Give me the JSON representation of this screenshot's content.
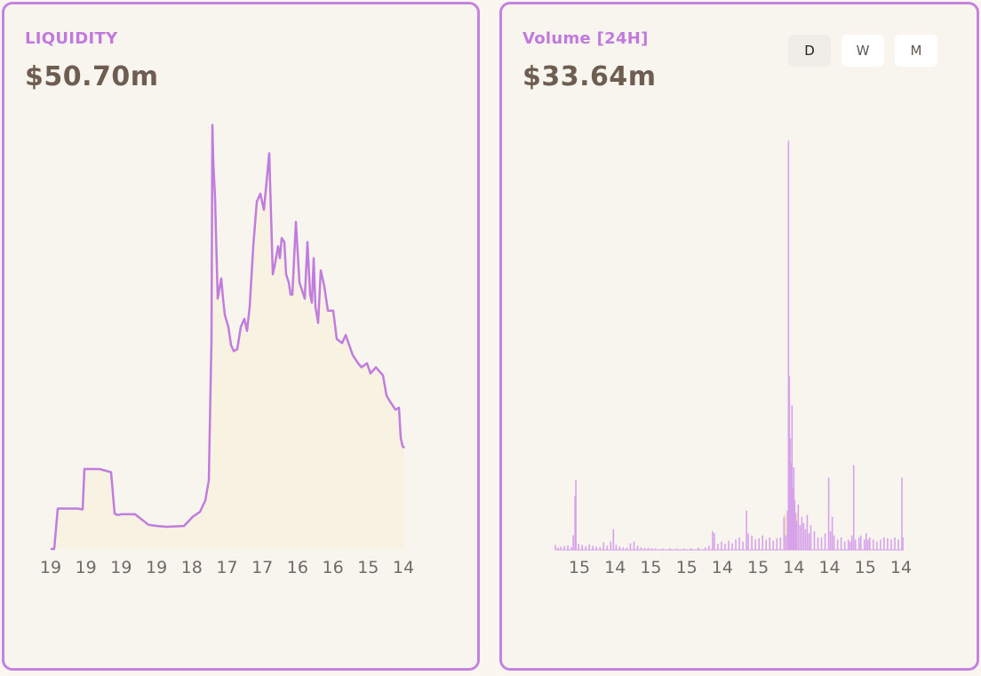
{
  "liquidity": {
    "label": "LIQUIDITY",
    "value": "$50.70m"
  },
  "volume": {
    "label": "Volume [24H]",
    "value": "$33.64m",
    "periods": [
      "D",
      "W",
      "M"
    ],
    "selected_period": "D"
  },
  "colors": {
    "line": "#c07ddd",
    "area_fill": "#f7f2e1",
    "bar": "#d6a2ea",
    "bar_highlight": "#f2d9a6",
    "border": "#c583e0",
    "value_text": "#6e5e52"
  },
  "chart_data": [
    {
      "type": "area",
      "xlabel": "",
      "ylabel": "",
      "grid": false,
      "tick_labels": [
        "19",
        "19",
        "19",
        "19",
        "18",
        "17",
        "17",
        "16",
        "16",
        "15",
        "14"
      ],
      "x": [
        0,
        4,
        8,
        30,
        36,
        38,
        42,
        55,
        68,
        72,
        75,
        80,
        95,
        110,
        120,
        130,
        150,
        160,
        168,
        174,
        178,
        181,
        182,
        183,
        185,
        188,
        192,
        194,
        196,
        200,
        203,
        206,
        210,
        214,
        218,
        221,
        224,
        228,
        232,
        236,
        240,
        246,
        250,
        252,
        256,
        258,
        260,
        263,
        265,
        268,
        270,
        272,
        276,
        280,
        286,
        289,
        292,
        294,
        296,
        298,
        301,
        304,
        308,
        312,
        318,
        322,
        328,
        332,
        340,
        346,
        350,
        356,
        360,
        366,
        370,
        374,
        378,
        382,
        388,
        392,
        394,
        396,
        398
      ],
      "y": [
        0,
        0,
        10.0,
        10.0,
        9.8,
        19.8,
        19.8,
        19.8,
        19.0,
        8.8,
        8.4,
        8.6,
        8.6,
        6.0,
        5.7,
        5.5,
        5.7,
        8.0,
        9.2,
        12.0,
        17.0,
        52.0,
        105.0,
        96.0,
        87.0,
        62.0,
        67.0,
        62.0,
        58.0,
        55.0,
        50.5,
        49.0,
        49.5,
        55.0,
        57.0,
        54.0,
        60.0,
        75.0,
        86.0,
        88.0,
        84.0,
        98.0,
        68.0,
        70.0,
        75.0,
        72.0,
        77.0,
        76.0,
        68.0,
        66.0,
        63.0,
        63.0,
        81.0,
        66.0,
        62.0,
        76.0,
        63.0,
        61.0,
        72.0,
        60.0,
        56.0,
        69.0,
        65.0,
        59.0,
        59.0,
        52.0,
        51.0,
        53.0,
        48.0,
        46.0,
        45.0,
        46.0,
        43.5,
        45.0,
        44.0,
        43.0,
        38.0,
        36.5,
        34.5,
        35.0,
        27.5,
        25.5,
        25.0
      ],
      "ylim": [
        0,
        110
      ]
    },
    {
      "type": "bar",
      "xlabel": "",
      "ylabel": "",
      "grid": false,
      "tick_labels": [
        "15",
        "14",
        "15",
        "15",
        "14",
        "15",
        "14",
        "14",
        "15",
        "14"
      ],
      "ylim": [
        0,
        100
      ],
      "bars": [
        [
          0,
          1.2
        ],
        [
          3,
          0.6
        ],
        [
          6,
          0.8
        ],
        [
          10,
          0.9
        ],
        [
          14,
          1.1
        ],
        [
          18,
          0.7
        ],
        [
          20,
          3.5
        ],
        [
          22,
          13.0
        ],
        [
          23,
          17.0
        ],
        [
          26,
          1.5
        ],
        [
          30,
          1.2
        ],
        [
          34,
          0.9
        ],
        [
          38,
          1.3
        ],
        [
          42,
          1.0
        ],
        [
          46,
          0.8
        ],
        [
          50,
          0.7
        ],
        [
          54,
          1.8
        ],
        [
          58,
          1.0
        ],
        [
          62,
          2.0
        ],
        [
          65,
          5.0
        ],
        [
          68,
          1.2
        ],
        [
          72,
          0.8
        ],
        [
          76,
          0.6
        ],
        [
          80,
          0.5
        ],
        [
          84,
          1.6
        ],
        [
          88,
          2.0
        ],
        [
          92,
          1.0
        ],
        [
          96,
          0.6
        ],
        [
          100,
          0.4
        ],
        [
          104,
          0.5
        ],
        [
          108,
          0.4
        ],
        [
          112,
          0.3
        ],
        [
          120,
          0.3
        ],
        [
          128,
          0.4
        ],
        [
          136,
          0.3
        ],
        [
          144,
          0.3
        ],
        [
          152,
          0.4
        ],
        [
          160,
          0.5
        ],
        [
          168,
          0.6
        ],
        [
          172,
          1.0
        ],
        [
          176,
          4.5
        ],
        [
          178,
          4.0
        ],
        [
          182,
          1.5
        ],
        [
          186,
          2.0
        ],
        [
          190,
          1.5
        ],
        [
          194,
          2.2
        ],
        [
          198,
          1.6
        ],
        [
          202,
          2.5
        ],
        [
          206,
          3.0
        ],
        [
          210,
          2.0
        ],
        [
          214,
          9.5
        ],
        [
          216,
          4.0
        ],
        [
          220,
          3.5
        ],
        [
          224,
          2.5
        ],
        [
          228,
          2.8
        ],
        [
          232,
          3.5
        ],
        [
          236,
          2.5
        ],
        [
          240,
          3.0
        ],
        [
          244,
          2.2
        ],
        [
          248,
          2.8
        ],
        [
          252,
          3.0
        ],
        [
          256,
          8.0
        ],
        [
          258,
          3.5
        ],
        [
          260,
          9.5
        ],
        [
          261,
          99.0
        ],
        [
          262,
          42.0
        ],
        [
          263,
          27.0
        ],
        [
          264,
          21.0
        ],
        [
          265,
          35.0
        ],
        [
          266,
          15.0
        ],
        [
          267,
          20.0
        ],
        [
          268,
          12.0
        ],
        [
          269,
          9.0
        ],
        [
          270,
          7.0
        ],
        [
          272,
          11.0
        ],
        [
          274,
          6.0
        ],
        [
          276,
          8.0
        ],
        [
          278,
          6.5
        ],
        [
          280,
          5.0
        ],
        [
          282,
          8.5
        ],
        [
          284,
          4.0
        ],
        [
          286,
          6.0
        ],
        [
          290,
          4.5
        ],
        [
          294,
          3.0
        ],
        [
          298,
          3.0
        ],
        [
          302,
          4.0
        ],
        [
          306,
          17.5
        ],
        [
          308,
          4.5
        ],
        [
          310,
          8.0
        ],
        [
          312,
          3.5
        ],
        [
          316,
          2.5
        ],
        [
          320,
          3.0
        ],
        [
          324,
          2.0
        ],
        [
          328,
          2.5
        ],
        [
          330,
          2.0
        ],
        [
          332,
          3.5
        ],
        [
          334,
          20.5
        ],
        [
          336,
          2.5
        ],
        [
          340,
          3.0
        ],
        [
          342,
          3.5
        ],
        [
          346,
          2.5
        ],
        [
          348,
          4.0
        ],
        [
          350,
          2.5
        ],
        [
          352,
          3.0
        ],
        [
          356,
          2.5
        ],
        [
          360,
          2.0
        ],
        [
          364,
          2.5
        ],
        [
          368,
          3.0
        ],
        [
          372,
          2.8
        ],
        [
          376,
          2.5
        ],
        [
          380,
          3.0
        ],
        [
          384,
          2.5
        ],
        [
          388,
          17.5
        ],
        [
          389,
          3.0
        ]
      ]
    }
  ]
}
